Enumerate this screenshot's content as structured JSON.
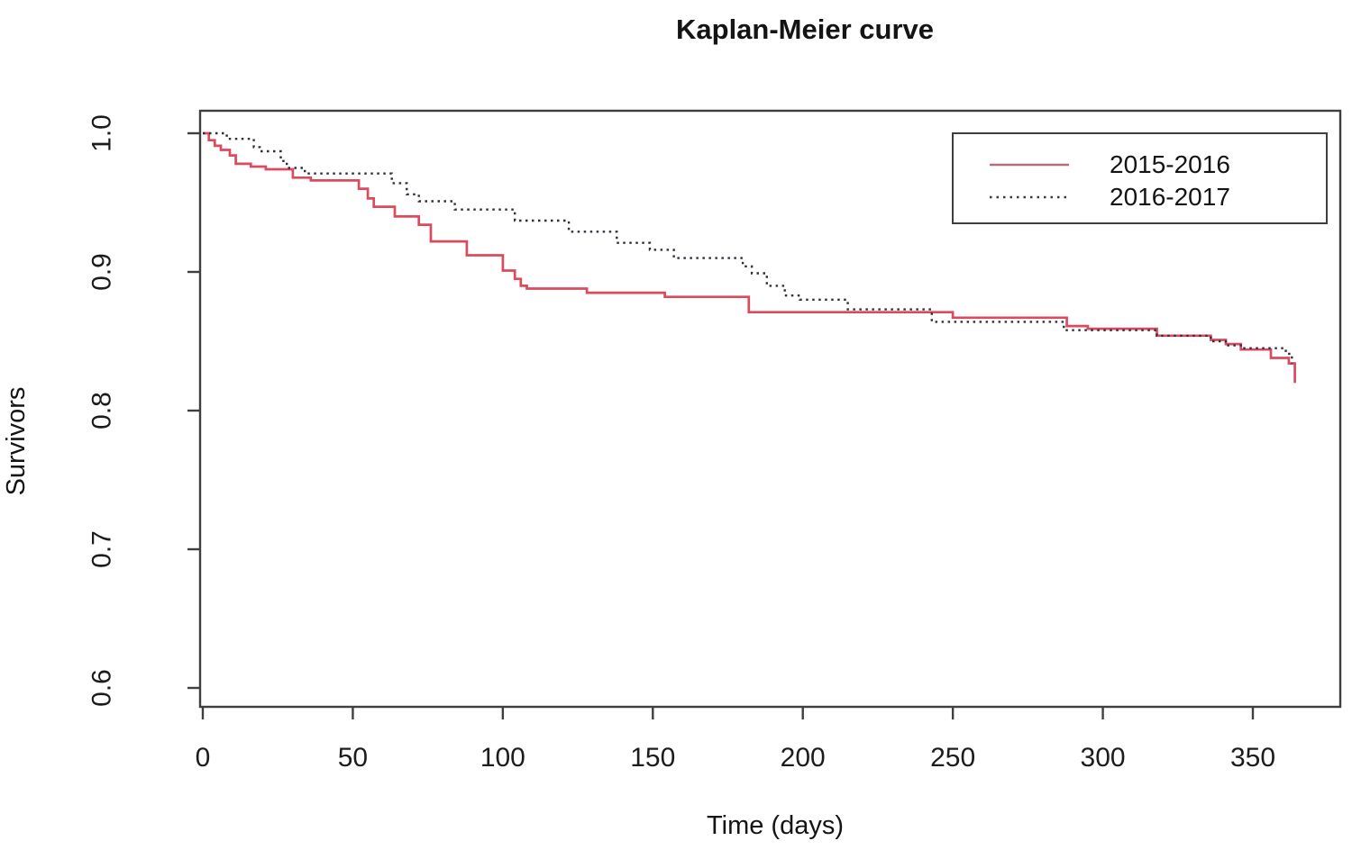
{
  "page": {
    "background": "#ffffff"
  },
  "chart_data": {
    "type": "line",
    "subtype": "kaplan-meier-step",
    "title": "Kaplan-Meier curve",
    "xlabel": "Time (days)",
    "ylabel": "Survivors",
    "grid": false,
    "legend_position": "top-right",
    "xlim": [
      -1,
      379
    ],
    "ylim": [
      0.586,
      1.016
    ],
    "x_ticks": [
      0,
      50,
      100,
      150,
      200,
      250,
      300,
      350
    ],
    "y_ticks": [
      {
        "label": "1.0",
        "value": 1.0
      },
      {
        "label": "0.9",
        "value": 0.9
      },
      {
        "label": "0.8",
        "value": 0.8
      },
      {
        "label": "0.7",
        "value": 0.7
      },
      {
        "label": "0.6",
        "value": 0.6
      }
    ],
    "axis_color": "#3f3f42",
    "series": [
      {
        "name": "2015-2016",
        "style": "solid",
        "color": "#dc4a5e",
        "legend_color": "#b66f78",
        "points": [
          [
            0,
            1.0
          ],
          [
            2,
            0.995
          ],
          [
            4,
            0.991
          ],
          [
            6,
            0.988
          ],
          [
            9,
            0.984
          ],
          [
            11,
            0.978
          ],
          [
            16,
            0.976
          ],
          [
            21,
            0.974
          ],
          [
            30,
            0.968
          ],
          [
            36,
            0.966
          ],
          [
            52,
            0.96
          ],
          [
            55,
            0.953
          ],
          [
            57,
            0.947
          ],
          [
            64,
            0.94
          ],
          [
            72,
            0.934
          ],
          [
            76,
            0.922
          ],
          [
            88,
            0.912
          ],
          [
            100,
            0.901
          ],
          [
            104,
            0.895
          ],
          [
            106,
            0.89
          ],
          [
            108,
            0.888
          ],
          [
            128,
            0.885
          ],
          [
            154,
            0.882
          ],
          [
            182,
            0.871
          ],
          [
            250,
            0.867
          ],
          [
            288,
            0.861
          ],
          [
            295,
            0.859
          ],
          [
            318,
            0.854
          ],
          [
            336,
            0.851
          ],
          [
            341,
            0.848
          ],
          [
            346,
            0.844
          ],
          [
            356,
            0.838
          ],
          [
            362,
            0.834
          ],
          [
            364,
            0.82
          ]
        ]
      },
      {
        "name": "2016-2017",
        "style": "dotted",
        "color": "#30303c",
        "legend_color": "#3a3a46",
        "points": [
          [
            0,
            1.0
          ],
          [
            8,
            0.996
          ],
          [
            17,
            0.99
          ],
          [
            19,
            0.987
          ],
          [
            26,
            0.98
          ],
          [
            28,
            0.975
          ],
          [
            34,
            0.971
          ],
          [
            63,
            0.964
          ],
          [
            68,
            0.956
          ],
          [
            72,
            0.951
          ],
          [
            84,
            0.945
          ],
          [
            104,
            0.937
          ],
          [
            122,
            0.929
          ],
          [
            138,
            0.921
          ],
          [
            149,
            0.916
          ],
          [
            157,
            0.91
          ],
          [
            180,
            0.904
          ],
          [
            183,
            0.899
          ],
          [
            188,
            0.89
          ],
          [
            194,
            0.883
          ],
          [
            199,
            0.88
          ],
          [
            215,
            0.873
          ],
          [
            243,
            0.864
          ],
          [
            287,
            0.858
          ],
          [
            318,
            0.854
          ],
          [
            336,
            0.85
          ],
          [
            341,
            0.847
          ],
          [
            346,
            0.845
          ],
          [
            361,
            0.841
          ],
          [
            363,
            0.834
          ]
        ]
      }
    ]
  }
}
